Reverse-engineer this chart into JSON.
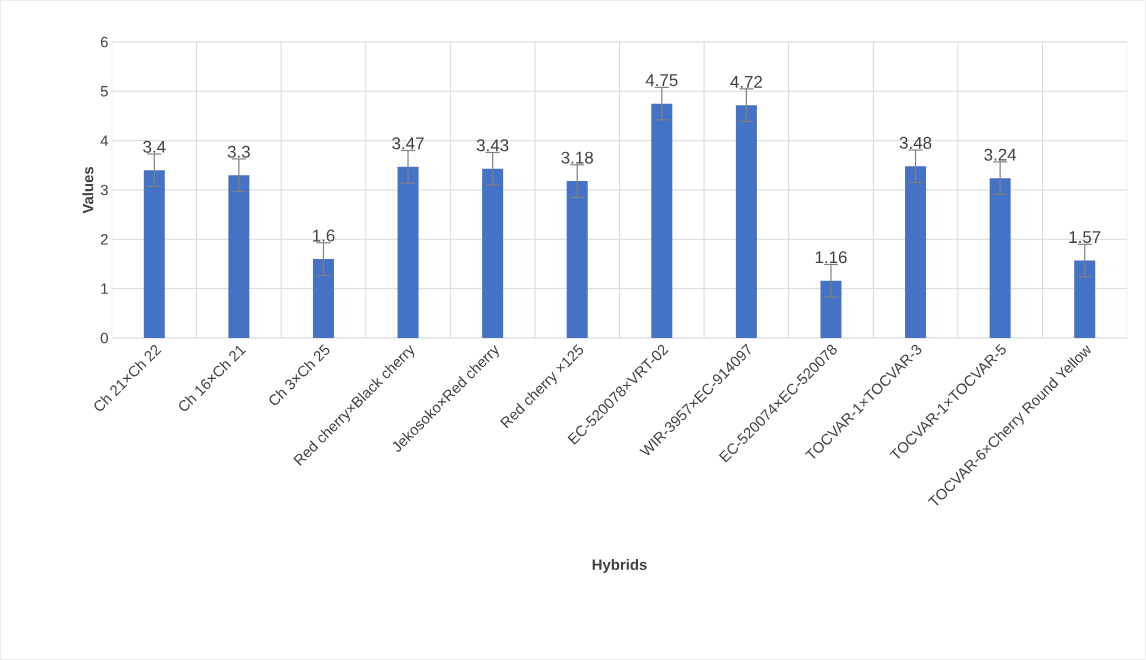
{
  "chart_data": {
    "type": "bar",
    "xlabel": "Hybrids",
    "ylabel": "Values",
    "categories": [
      "Ch 21×Ch 22",
      "Ch 16×Ch 21",
      "Ch 3×Ch 25",
      "Red cherry×Black cherry",
      "Jekosoko×Red cherry",
      "Red cherry ×125",
      "EC-520078×VRT-02",
      "WIR-3957×EC-914097",
      "EC-520074×EC-520078",
      "TOCVAR-1×TOCVAR-3",
      "TOCVAR-1×TOCVAR-5",
      "TOCVAR-6×Cherry Round Yellow"
    ],
    "values": [
      3.4,
      3.3,
      1.6,
      3.47,
      3.43,
      3.18,
      4.75,
      4.72,
      1.16,
      3.48,
      3.24,
      1.57
    ],
    "errors": [
      0.33,
      0.33,
      0.33,
      0.33,
      0.33,
      0.33,
      0.33,
      0.33,
      0.33,
      0.33,
      0.33,
      0.33
    ],
    "color": "#4472c4",
    "ylim": [
      0,
      6
    ],
    "yticks": [
      0,
      1,
      2,
      3,
      4,
      5,
      6
    ],
    "grid": true,
    "data_labels": true
  }
}
